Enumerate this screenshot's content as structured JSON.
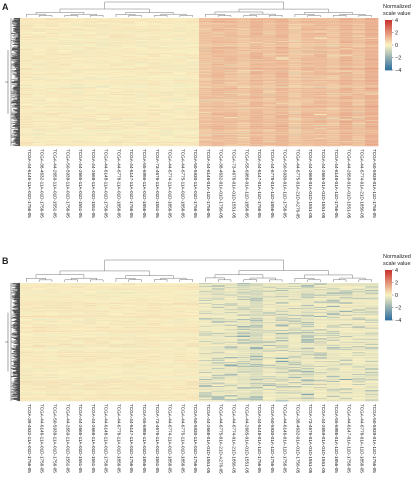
{
  "figure": {
    "legend_title_line1": "Normalized",
    "legend_title_line2": "scale value"
  },
  "colors": {
    "low": "#2e6e9e",
    "mid": "#fbf2c4",
    "high": "#c8312c"
  },
  "chart_data": [
    {
      "type": "heatmap",
      "panel_label": "A",
      "legend_ticks": [
        "4",
        "2",
        "0",
        "−2",
        "−4"
      ],
      "legend_values": [
        4,
        2,
        0,
        -2,
        -4
      ],
      "color_range": [
        -4,
        4
      ],
      "columns": [
        "TCGA-44-6146-11A-01D-1756-05",
        "TCGA-38-4632-11A-01D-1756-05",
        "TCGA-44-2659-11A-01D-1551-05",
        "TCGA-50-5939-11A-01D-1756-05",
        "TCGA-44-2665-11A-01D-1551-05",
        "TCGA-44-2668-11A-01D-1551-05",
        "TCGA-44-6148-11A-01D-1756-05",
        "TCGA-44-6778-11A-01D-1856-05",
        "TCGA-44-6147-11A-01D-1756-05",
        "TCGA-55-6986-11A-01D-1856-05",
        "TCGA-73-4676-11A-01D-1551-05",
        "TCGA-44-6774-11A-01D-1856-05",
        "TCGA-44-6775-11A-01D-1856-05",
        "TCGA-50-5930-11A-01D-1756-05",
        "TCGA-44-6146-01A-11D-1756-05",
        "TCGA-38-4632-01A-01D-1756-05",
        "TCGA-73-4676-01A-01D-1551-05",
        "TCGA-55-6986-01A-11D-1856-05",
        "TCGA-44-6147-01A-11D-1756-05",
        "TCGA-44-6778-01A-11D-1856-05",
        "TCGA-50-5930-01A-11D-1756-05",
        "TCGA-44-6775-01A-21D-A276-05",
        "TCGA-44-2668-01A-01D-1551-05",
        "TCGA-44-2665-01A-01D-1551-05",
        "TCGA-44-6148-01A-11D-1756-05",
        "TCGA-44-2659-01A-01D-1551-05",
        "TCGA-44-6774-01A-21D-1856-05",
        "TCGA-50-5939-01A-11D-1756-05"
      ],
      "column_means": [
        0.12,
        0.05,
        0.1,
        0.08,
        0.03,
        0.06,
        0.02,
        0.07,
        0.09,
        0.04,
        0.11,
        0.05,
        0.02,
        0.08,
        0.95,
        1.1,
        1.05,
        0.9,
        1.15,
        1.0,
        1.2,
        0.85,
        1.05,
        1.1,
        0.95,
        1.25,
        1.0,
        1.3
      ],
      "row_count": 300,
      "grid": false,
      "legend_position": "right"
    },
    {
      "type": "heatmap",
      "panel_label": "B",
      "legend_ticks": [
        "4",
        "2",
        "0",
        "−2",
        "−4"
      ],
      "legend_values": [
        4,
        2,
        0,
        -2,
        -4
      ],
      "color_range": [
        -4,
        4
      ],
      "columns": [
        "TCGA-38-4632-11A-01D-1756-05",
        "TCGA-44-6146-11A-01D-1756-05",
        "TCGA-50-5939-11A-01D-1756-05",
        "TCGA-44-2659-11A-01D-1551-05",
        "TCGA-44-2665-11A-01D-1551-05",
        "TCGA-44-2668-11A-01D-1551-05",
        "TCGA-44-6148-11A-01D-1756-05",
        "TCGA-44-6778-11A-01D-1856-05",
        "TCGA-44-6147-11A-01D-1756-05",
        "TCGA-55-6986-11A-01D-1856-05",
        "TCGA-73-4676-11A-01D-1551-05",
        "TCGA-44-6774-11A-01D-1856-05",
        "TCGA-44-6775-11A-01D-1856-05",
        "TCGA-50-5930-11A-01D-1756-05",
        "TCGA-44-2668-01A-01D-1551-05",
        "TCGA-44-6775-01A-21D-A276-05",
        "TCGA-44-6774-01A-21D-1856-05",
        "TCGA-44-2665-01A-01D-1551-05",
        "TCGA-44-6148-01A-11D-1756-05",
        "TCGA-50-5930-01A-11D-1756-05",
        "TCGA-44-6146-01A-11D-1756-05",
        "TCGA-38-4632-01A-01D-1756-05",
        "TCGA-73-4676-01A-01D-1551-05",
        "TCGA-44-2659-01A-01D-1551-05",
        "TCGA-55-6986-01A-11D-1856-05",
        "TCGA-44-6147-01A-11D-1756-05",
        "TCGA-44-6778-01A-11D-1856-05",
        "TCGA-50-5939-01A-11D-1756-05"
      ],
      "column_means": [
        0.12,
        0.1,
        0.09,
        0.11,
        0.08,
        0.1,
        0.07,
        0.09,
        0.08,
        0.1,
        0.12,
        0.07,
        0.08,
        0.1,
        -0.2,
        -0.3,
        -0.25,
        -0.35,
        -0.6,
        -0.2,
        -0.3,
        -0.25,
        -0.4,
        -0.15,
        -0.3,
        -0.2,
        -0.25,
        -0.3
      ],
      "row_count": 300,
      "grid": false,
      "legend_position": "right"
    }
  ]
}
